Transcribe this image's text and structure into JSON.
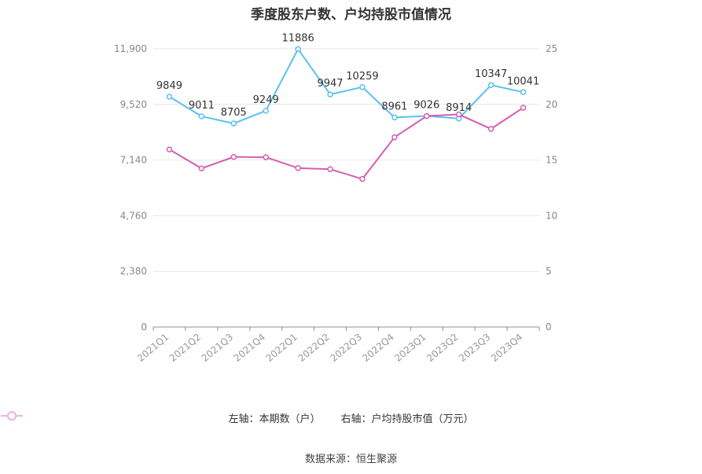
{
  "chart_data": {
    "type": "line",
    "title": "季度股东户数、户均持股市值情况",
    "categories": [
      "2021Q1",
      "2021Q2",
      "2021Q3",
      "2021Q4",
      "2022Q1",
      "2022Q2",
      "2022Q3",
      "2022Q4",
      "2023Q1",
      "2023Q2",
      "2023Q3",
      "2023Q4"
    ],
    "left_axis": {
      "ticks": [
        "0",
        "2,380",
        "4,760",
        "7,140",
        "9,520",
        "11,900"
      ],
      "ylim": [
        0,
        11900
      ]
    },
    "right_axis": {
      "ticks": [
        "0",
        "5",
        "10",
        "15",
        "20",
        "25"
      ],
      "ylim": [
        0,
        25
      ]
    },
    "series": [
      {
        "name": "左轴：本期数（户）",
        "axis": "left",
        "color": "#5bc0f0",
        "values": [
          9849,
          9011,
          8705,
          9249,
          11886,
          9947,
          10259,
          8961,
          9026,
          8914,
          10347,
          10041
        ],
        "labels": [
          "9849",
          "9011",
          "8705",
          "9249",
          "11886",
          "9947",
          "10259",
          "8961",
          "9026",
          "8914",
          "10347",
          "10041"
        ]
      },
      {
        "name": "右轴：户均持股市值（万元）",
        "axis": "right",
        "color": "#d45fb0",
        "values": [
          15.95,
          14.25,
          15.28,
          15.25,
          14.28,
          14.18,
          13.3,
          17.05,
          18.95,
          19.1,
          17.8,
          19.7
        ]
      }
    ],
    "grid": true,
    "legend_position": "bottom"
  },
  "source": "数据来源：恒生聚源"
}
